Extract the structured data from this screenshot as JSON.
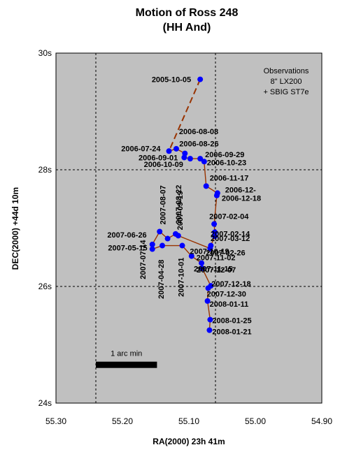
{
  "chart_data": {
    "type": "scatter",
    "title": "Motion of Ross 248",
    "subtitle": "(HH And)",
    "xlabel": "RA(2000) 23h 41m",
    "ylabel": "DEC(2000) +44d 10m",
    "xlim": [
      55.3,
      54.9
    ],
    "ylim": [
      24,
      30
    ],
    "x_reversed": true,
    "x_ticks": [
      "55.30",
      "55.20",
      "55.10",
      "55.00",
      "54.90"
    ],
    "y_ticks": [
      "24s",
      "26s",
      "28s",
      "30s"
    ],
    "grid_x": [
      55.24,
      55.06
    ],
    "grid_y": [
      26,
      28
    ],
    "annotation": [
      "Observations",
      "8\" LX200",
      "+ SBIG ST7e"
    ],
    "scale_bar_label": "1 arc min",
    "scale_bar_ra": [
      55.24,
      55.148
    ],
    "scale_bar_dec": 24.65,
    "colors": {
      "plot_bg": "#c0c0c0",
      "point": "#0000ff",
      "line": "#993300"
    },
    "series": [
      {
        "points": [
          {
            "label": "2005-10-05",
            "ra": 55.083,
            "dec": 29.55
          },
          {
            "label": "2006-07-24",
            "ra": 55.13,
            "dec": 28.32
          },
          {
            "label": "2006-08-08",
            "ra": 55.119,
            "dec": 28.36
          },
          {
            "label": "2006-08-26",
            "ra": 55.106,
            "dec": 28.28
          },
          {
            "label": "2006-09-01",
            "ra": 55.107,
            "dec": 28.21
          },
          {
            "label": "2006-10-09",
            "ra": 55.098,
            "dec": 28.19
          },
          {
            "label": "2006-09-29",
            "ra": 55.083,
            "dec": 28.19
          },
          {
            "label": "2006-10-23",
            "ra": 55.077,
            "dec": 28.14
          },
          {
            "label": "2006-11-17",
            "ra": 55.074,
            "dec": 27.72
          },
          {
            "label": "2006-12-",
            "ra": 55.057,
            "dec": 27.6
          },
          {
            "label": "2006-12-18",
            "ra": 55.058,
            "dec": 27.56
          },
          {
            "label": "2007-02-04",
            "ra": 55.062,
            "dec": 27.07
          },
          {
            "label": "2007-02-14",
            "ra": 55.061,
            "dec": 26.93
          },
          {
            "label": "2007-03-12",
            "ra": 55.061,
            "dec": 26.86
          },
          {
            "label": "2007-02-26",
            "ra": 55.067,
            "dec": 26.7
          },
          {
            "label": "2007-10-19",
            "ra": 55.068,
            "dec": 26.65
          },
          {
            "label": "2007-09-19",
            "ra": 55.116,
            "dec": 26.87
          },
          {
            "label": "2007-08-22",
            "ra": 55.12,
            "dec": 26.9
          },
          {
            "label": "2007-08-07",
            "ra": 55.132,
            "dec": 26.82
          },
          {
            "label": "2007-07-14",
            "ra": 55.144,
            "dec": 26.94
          },
          {
            "label": "2007-06-26",
            "ra": 55.155,
            "dec": 26.72
          },
          {
            "label": "2007-05-15",
            "ra": 55.155,
            "dec": 26.64
          },
          {
            "label": "2007-04-28",
            "ra": 55.14,
            "dec": 26.7
          },
          {
            "label": "2007-10-01",
            "ra": 55.11,
            "dec": 26.7
          },
          {
            "label": "2007-11-02",
            "ra": 55.096,
            "dec": 26.52
          },
          {
            "label": "2007-11-15",
            "ra": 55.081,
            "dec": 26.4
          },
          {
            "label": "2007-12-07",
            "ra": 55.08,
            "dec": 26.31
          },
          {
            "label": "2007-12-18",
            "ra": 55.067,
            "dec": 26.01
          },
          {
            "label": "2007-12-30",
            "ra": 55.071,
            "dec": 25.97
          },
          {
            "label": "2008-01-11",
            "ra": 55.072,
            "dec": 25.75
          },
          {
            "label": "2008-01-25",
            "ra": 55.068,
            "dec": 25.43
          },
          {
            "label": "2008-01-21",
            "ra": 55.069,
            "dec": 25.25
          }
        ]
      }
    ]
  }
}
